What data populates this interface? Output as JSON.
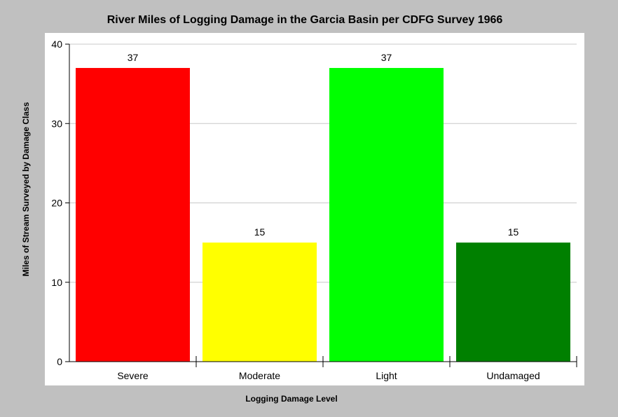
{
  "chart_data": {
    "type": "bar",
    "title": "River Miles of Logging Damage in the Garcia Basin per CDFG Survey 1966",
    "xlabel": "Logging Damage Level",
    "ylabel": "Miles of Stream Surveyed by Damage Class",
    "categories": [
      "Severe",
      "Moderate",
      "Light",
      "Undamaged"
    ],
    "values": [
      37,
      15,
      37,
      15
    ],
    "data_labels": [
      "37",
      "15",
      "37",
      "15"
    ],
    "colors": [
      "#ff0000",
      "#ffff00",
      "#00ff00",
      "#008000"
    ],
    "ylim": [
      0,
      40
    ],
    "yticks": [
      0,
      10,
      20,
      30,
      40
    ],
    "ytick_labels": [
      "0",
      "10",
      "20",
      "30",
      "40"
    ],
    "grid": true,
    "legend": "none"
  }
}
